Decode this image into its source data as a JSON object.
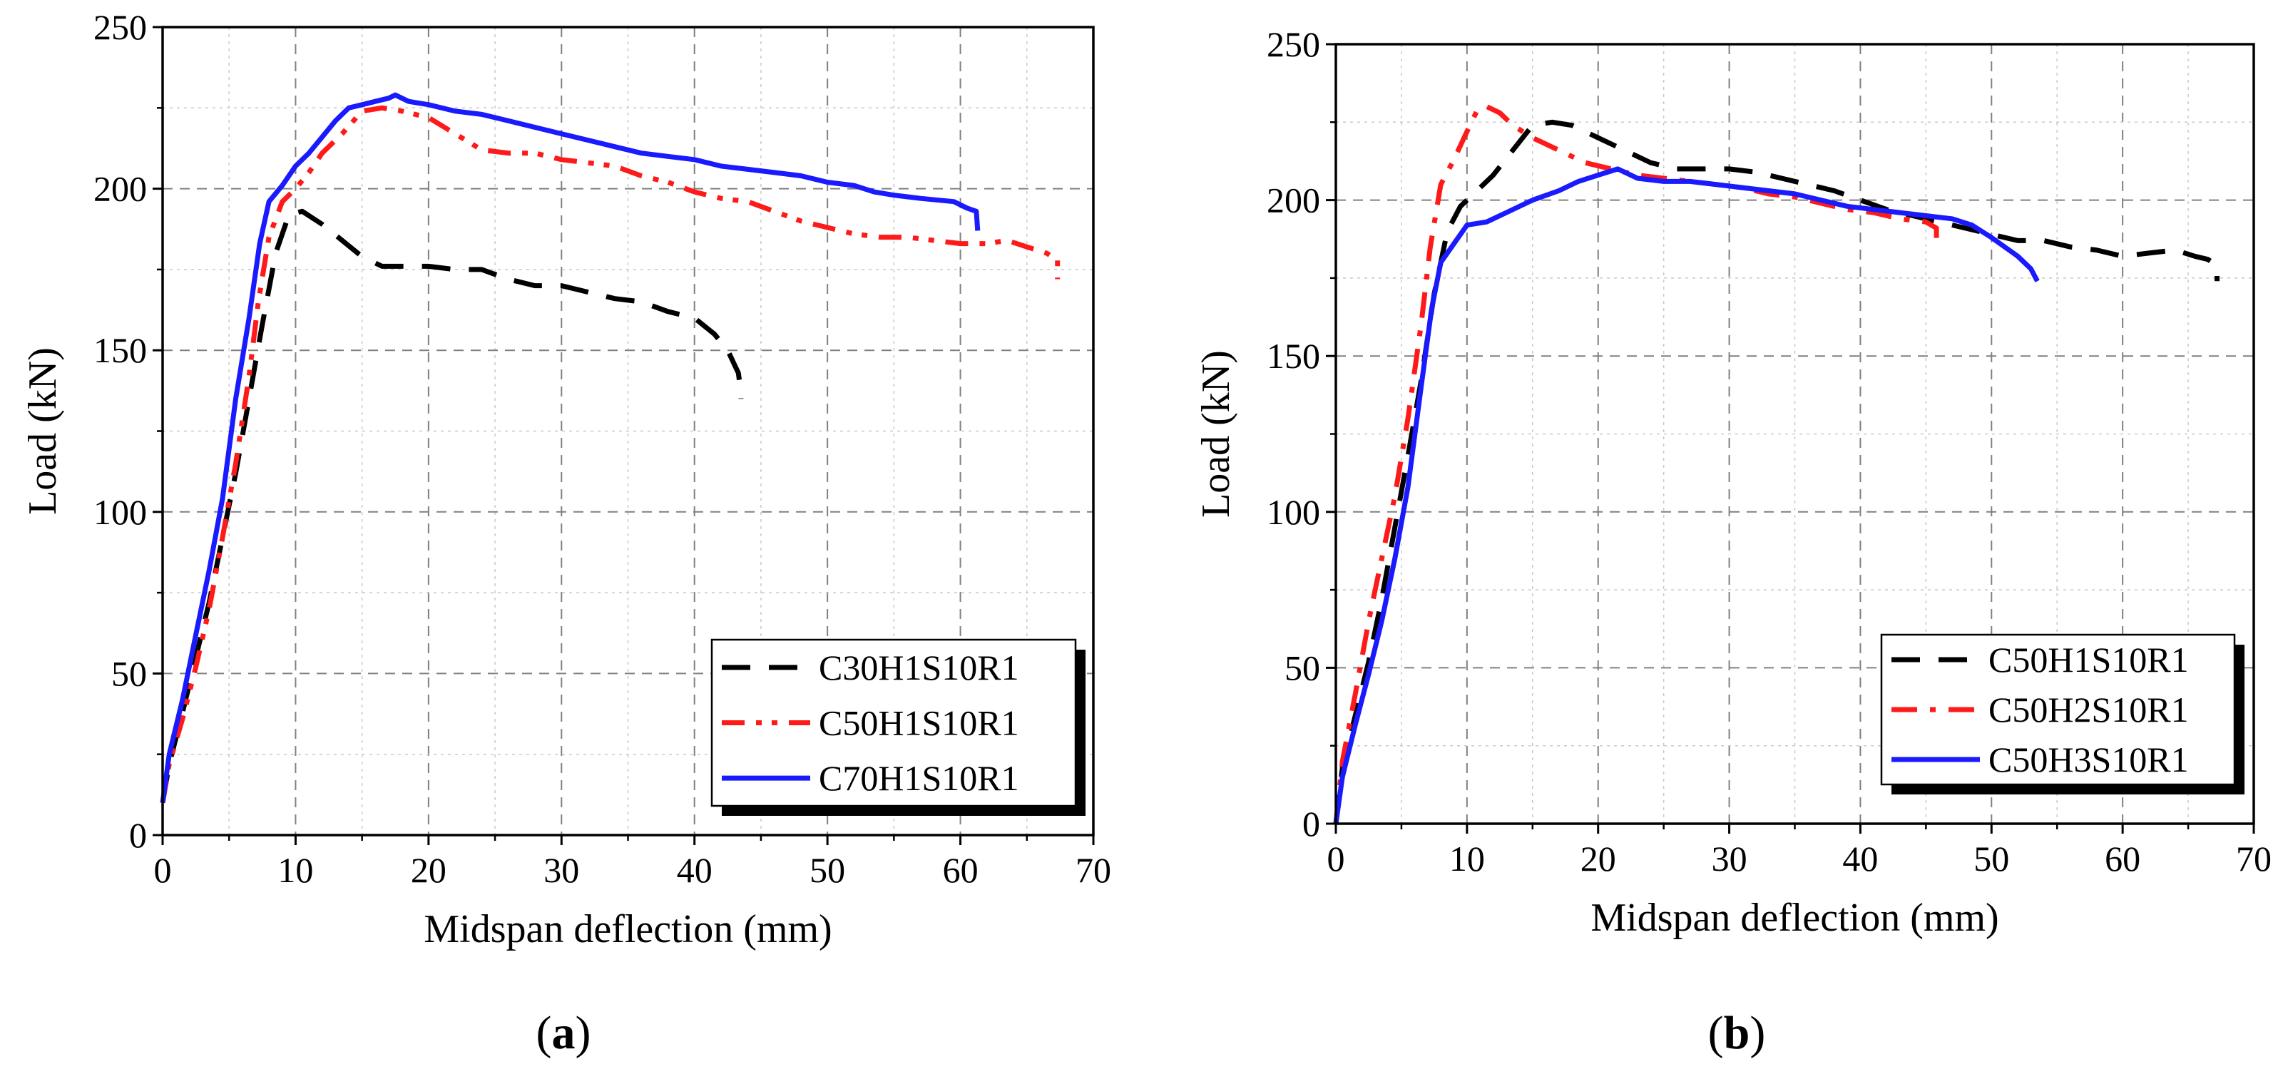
{
  "chart_data": [
    {
      "type": "line",
      "panel_label": {
        "open": "(",
        "letter": "a",
        "close": ")"
      },
      "xlabel": "Midspan deflection (mm)",
      "ylabel": "Load (kN)",
      "xlim": [
        0,
        70
      ],
      "ylim": [
        0,
        250
      ],
      "xticks": [
        0,
        10,
        20,
        30,
        40,
        50,
        60,
        70
      ],
      "yticks": [
        0,
        50,
        100,
        150,
        200,
        250
      ],
      "grid": true,
      "legend_position": "bottom-right",
      "series": [
        {
          "name": "C30H1S10R1",
          "color": "#000000",
          "dash": "dash",
          "points": [
            [
              0,
              10
            ],
            [
              0.5,
              22
            ],
            [
              1.5,
              38
            ],
            [
              2.5,
              55
            ],
            [
              3.5,
              72
            ],
            [
              4.5,
              92
            ],
            [
              5.5,
              112
            ],
            [
              6.5,
              135
            ],
            [
              7.5,
              158
            ],
            [
              8.5,
              180
            ],
            [
              9.5,
              192
            ],
            [
              10.5,
              193
            ],
            [
              12,
              189
            ],
            [
              13.5,
              184
            ],
            [
              15,
              179
            ],
            [
              16.5,
              176
            ],
            [
              18,
              176
            ],
            [
              20,
              176
            ],
            [
              22,
              175
            ],
            [
              24,
              175
            ],
            [
              26,
              172
            ],
            [
              28,
              170
            ],
            [
              30,
              170
            ],
            [
              32,
              168
            ],
            [
              34,
              166
            ],
            [
              36,
              165
            ],
            [
              38,
              162
            ],
            [
              40,
              160
            ],
            [
              41.5,
              155
            ],
            [
              42.5,
              150
            ],
            [
              43.3,
              143
            ],
            [
              43.5,
              137
            ],
            [
              43.5,
              135
            ]
          ]
        },
        {
          "name": "C50H1S10R1",
          "color": "#ff1a1a",
          "dash": "dashdotdot",
          "points": [
            [
              0,
              10
            ],
            [
              0.5,
              22
            ],
            [
              1.5,
              36
            ],
            [
              2.5,
              52
            ],
            [
              3.5,
              70
            ],
            [
              4.5,
              92
            ],
            [
              5.5,
              115
            ],
            [
              6.5,
              142
            ],
            [
              7.2,
              165
            ],
            [
              8,
              185
            ],
            [
              9,
              196
            ],
            [
              10,
              200
            ],
            [
              11,
              205
            ],
            [
              12,
              211
            ],
            [
              13.5,
              217
            ],
            [
              15,
              224
            ],
            [
              16.5,
              225
            ],
            [
              18,
              224
            ],
            [
              20,
              222
            ],
            [
              22,
              217
            ],
            [
              24,
              212
            ],
            [
              26,
              211
            ],
            [
              28,
              211
            ],
            [
              30,
              209
            ],
            [
              32,
              208
            ],
            [
              34,
              207
            ],
            [
              36,
              204
            ],
            [
              38,
              202
            ],
            [
              40,
              199
            ],
            [
              42,
              197
            ],
            [
              44,
              196
            ],
            [
              46,
              193
            ],
            [
              48,
              190
            ],
            [
              50,
              188
            ],
            [
              52,
              186
            ],
            [
              54,
              185
            ],
            [
              56,
              185
            ],
            [
              58,
              184
            ],
            [
              60,
              183
            ],
            [
              62,
              183
            ],
            [
              63.5,
              184
            ],
            [
              65,
              182
            ],
            [
              66.5,
              180
            ],
            [
              67.3,
              178
            ],
            [
              67.3,
              172
            ]
          ]
        },
        {
          "name": "C70H1S10R1",
          "color": "#1a1aff",
          "dash": "solid",
          "points": [
            [
              0,
              10
            ],
            [
              0.5,
              25
            ],
            [
              1.5,
              42
            ],
            [
              2.5,
              62
            ],
            [
              3.5,
              82
            ],
            [
              4.5,
              104
            ],
            [
              5.5,
              135
            ],
            [
              6.5,
              160
            ],
            [
              7.3,
              183
            ],
            [
              8,
              196
            ],
            [
              9,
              201
            ],
            [
              10,
              207
            ],
            [
              11,
              211
            ],
            [
              12,
              216
            ],
            [
              13,
              221
            ],
            [
              14,
              225
            ],
            [
              15,
              226
            ],
            [
              16,
              227
            ],
            [
              17,
              228
            ],
            [
              17.5,
              229
            ],
            [
              18.5,
              227
            ],
            [
              20,
              226
            ],
            [
              22,
              224
            ],
            [
              24,
              223
            ],
            [
              26,
              221
            ],
            [
              28,
              219
            ],
            [
              30,
              217
            ],
            [
              32,
              215
            ],
            [
              34,
              213
            ],
            [
              36,
              211
            ],
            [
              38,
              210
            ],
            [
              40,
              209
            ],
            [
              42,
              207
            ],
            [
              44,
              206
            ],
            [
              46,
              205
            ],
            [
              48,
              204
            ],
            [
              50,
              202
            ],
            [
              52,
              201
            ],
            [
              53.5,
              199
            ],
            [
              55,
              198
            ],
            [
              57,
              197
            ],
            [
              59.5,
              196
            ],
            [
              60.5,
              194
            ],
            [
              61.2,
              193
            ],
            [
              61.3,
              187
            ]
          ]
        }
      ]
    },
    {
      "type": "line",
      "panel_label": {
        "open": "(",
        "letter": "b",
        "close": ")"
      },
      "xlabel": "Midspan deflection (mm)",
      "ylabel": "Load (kN)",
      "xlim": [
        0,
        70
      ],
      "ylim": [
        0,
        250
      ],
      "xticks": [
        0,
        10,
        20,
        30,
        40,
        50,
        60,
        70
      ],
      "yticks": [
        0,
        50,
        100,
        150,
        200,
        250
      ],
      "grid": true,
      "legend_position": "bottom-right",
      "series": [
        {
          "name": "C50H1S10R1",
          "color": "#000000",
          "dash": "dash",
          "points": [
            [
              0,
              0
            ],
            [
              0.5,
              18
            ],
            [
              1.5,
              35
            ],
            [
              2.5,
              52
            ],
            [
              3.5,
              72
            ],
            [
              4.5,
              95
            ],
            [
              5.5,
              118
            ],
            [
              6.5,
              142
            ],
            [
              7.5,
              170
            ],
            [
              8.5,
              190
            ],
            [
              9.5,
              198
            ],
            [
              10.5,
              202
            ],
            [
              12,
              208
            ],
            [
              13.5,
              216
            ],
            [
              15,
              224
            ],
            [
              16.5,
              225
            ],
            [
              18,
              224
            ],
            [
              20,
              220
            ],
            [
              22,
              216
            ],
            [
              24,
              212
            ],
            [
              26,
              210
            ],
            [
              28,
              210
            ],
            [
              30,
              210
            ],
            [
              32,
              209
            ],
            [
              34,
              207
            ],
            [
              36,
              205
            ],
            [
              38,
              203
            ],
            [
              40,
              200
            ],
            [
              42,
              197
            ],
            [
              44,
              195
            ],
            [
              46,
              193
            ],
            [
              48,
              191
            ],
            [
              50,
              189
            ],
            [
              52,
              187
            ],
            [
              54,
              187
            ],
            [
              56,
              185
            ],
            [
              58,
              184
            ],
            [
              60,
              182
            ],
            [
              62,
              183
            ],
            [
              64,
              184
            ],
            [
              65.5,
              182
            ],
            [
              66.5,
              181
            ],
            [
              67.2,
              179
            ],
            [
              67.2,
              174
            ]
          ]
        },
        {
          "name": "C50H2S10R1",
          "color": "#ff1a1a",
          "dash": "dashdot",
          "points": [
            [
              0,
              0
            ],
            [
              0.5,
              20
            ],
            [
              1.5,
              42
            ],
            [
              2.5,
              65
            ],
            [
              3.5,
              85
            ],
            [
              4.5,
              105
            ],
            [
              5.5,
              130
            ],
            [
              6.5,
              160
            ],
            [
              7.2,
              185
            ],
            [
              8,
              205
            ],
            [
              9,
              213
            ],
            [
              10,
              222
            ],
            [
              10.8,
              229
            ],
            [
              11.5,
              230
            ],
            [
              12.5,
              228
            ],
            [
              13.5,
              224
            ],
            [
              15,
              220
            ],
            [
              17,
              216
            ],
            [
              19,
              212
            ],
            [
              21,
              210
            ],
            [
              23,
              208
            ],
            [
              25,
              207
            ],
            [
              27,
              206
            ],
            [
              29,
              205
            ],
            [
              31,
              204
            ],
            [
              33,
              202
            ],
            [
              35,
              201
            ],
            [
              37,
              199
            ],
            [
              39,
              197
            ],
            [
              41,
              196
            ],
            [
              43,
              194
            ],
            [
              45,
              193
            ],
            [
              45.8,
              191
            ],
            [
              45.8,
              186
            ]
          ]
        },
        {
          "name": "C50H3S10R1",
          "color": "#1a1aff",
          "dash": "solid",
          "points": [
            [
              0,
              0
            ],
            [
              0.5,
              15
            ],
            [
              1.5,
              32
            ],
            [
              2.5,
              48
            ],
            [
              3.5,
              65
            ],
            [
              4.5,
              85
            ],
            [
              5.5,
              108
            ],
            [
              6.5,
              140
            ],
            [
              7.3,
              165
            ],
            [
              8,
              180
            ],
            [
              9,
              186
            ],
            [
              10,
              192
            ],
            [
              11.5,
              193
            ],
            [
              13,
              196
            ],
            [
              15,
              200
            ],
            [
              17,
              203
            ],
            [
              18.5,
              206
            ],
            [
              20,
              208
            ],
            [
              21.5,
              210
            ],
            [
              23,
              207
            ],
            [
              25,
              206
            ],
            [
              27,
              206
            ],
            [
              29,
              205
            ],
            [
              31,
              204
            ],
            [
              33,
              203
            ],
            [
              35,
              202
            ],
            [
              37,
              200
            ],
            [
              39,
              198
            ],
            [
              41,
              197
            ],
            [
              43,
              196
            ],
            [
              45,
              195
            ],
            [
              47,
              194
            ],
            [
              48.5,
              192
            ],
            [
              50,
              188
            ],
            [
              51,
              185
            ],
            [
              52,
              182
            ],
            [
              53,
              178
            ],
            [
              53.5,
              174
            ]
          ]
        }
      ]
    }
  ]
}
